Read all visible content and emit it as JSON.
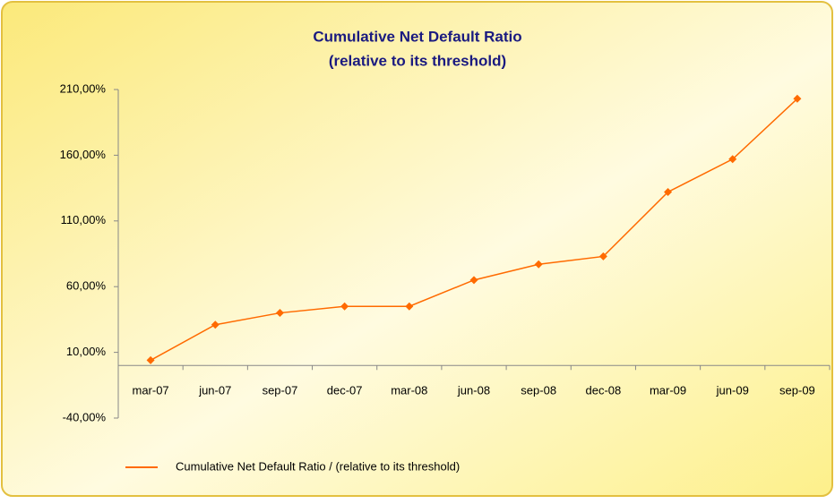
{
  "chart_data": {
    "type": "line",
    "title": "Cumulative Net Default Ratio",
    "subtitle": "(relative to its threshold)",
    "categories": [
      "mar-07",
      "jun-07",
      "sep-07",
      "dec-07",
      "mar-08",
      "jun-08",
      "sep-08",
      "dec-08",
      "mar-09",
      "jun-09",
      "sep-09"
    ],
    "series": [
      {
        "name": "Cumulative Net Default Ratio / (relative to its threshold)",
        "color": "#ff6a00",
        "values": [
          4,
          31,
          40,
          45,
          45,
          65,
          77,
          83,
          132,
          157,
          203
        ]
      }
    ],
    "ylim": [
      -40,
      210
    ],
    "yticks": [
      {
        "value": -40,
        "label": "-40,00%"
      },
      {
        "value": 10,
        "label": "10,00%"
      },
      {
        "value": 60,
        "label": "60,00%"
      },
      {
        "value": 110,
        "label": "110,00%"
      },
      {
        "value": 160,
        "label": "160,00%"
      },
      {
        "value": 210,
        "label": "210,00%"
      }
    ],
    "legend": "bottom"
  }
}
